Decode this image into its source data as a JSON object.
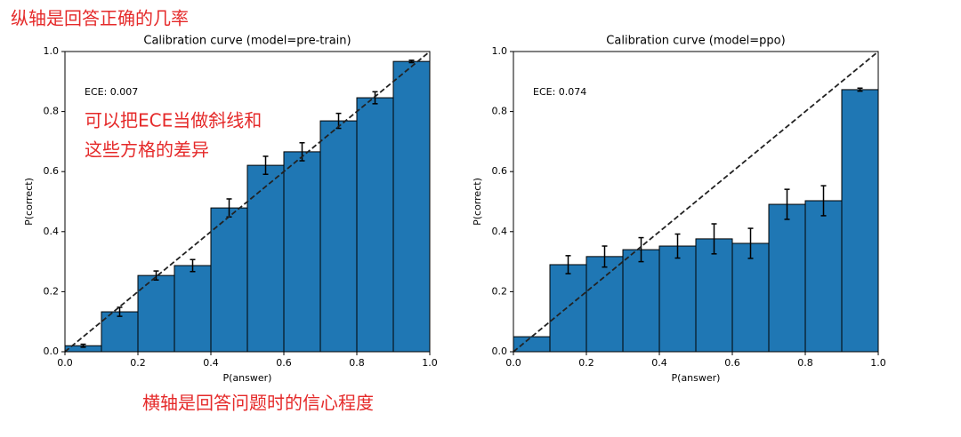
{
  "annotations": [
    "纵轴是回答正确的几率",
    "可以把ECE当做斜线和",
    "这些方格的差异",
    "横轴是回答问题时的信心程度"
  ],
  "chart_data": [
    {
      "type": "histogram",
      "title": "Calibration curve (model=pre-train)",
      "annotation": "ECE: 0.007",
      "x_label": "P(answer)",
      "y_label": "P(correct)",
      "color": "#1f77b4",
      "bins": [
        0,
        0.1,
        0.2,
        0.3,
        0.4,
        0.5,
        0.6,
        0.7,
        0.8,
        0.9,
        1
      ],
      "values": [
        0.02,
        0.133,
        0.254,
        0.287,
        0.479,
        0.621,
        0.666,
        0.769,
        0.846,
        0.967
      ],
      "errors": [
        0.005,
        0.015,
        0.015,
        0.02,
        0.03,
        0.03,
        0.03,
        0.025,
        0.02,
        0.004
      ],
      "xlim": [
        0,
        1
      ],
      "ylim": [
        0,
        1
      ],
      "xticks": [
        {
          "value": 0,
          "label": "0.0"
        },
        0.2,
        0.4,
        0.6,
        0.8,
        {
          "value": 1,
          "label": "1.0"
        }
      ],
      "yticks": [
        {
          "value": 0,
          "label": "0.0"
        },
        0.2,
        0.4,
        0.6,
        0.8,
        {
          "value": 1,
          "label": "1.0"
        }
      ]
    },
    {
      "type": "histogram",
      "title": "Calibration curve (model=ppo)",
      "annotation": "ECE: 0.074",
      "x_label": "P(answer)",
      "y_label": "P(correct)",
      "color": "#1f77b4",
      "bins": [
        0,
        0.1,
        0.2,
        0.3,
        0.4,
        0.5,
        0.6,
        0.7,
        0.8,
        0.9,
        1
      ],
      "values": [
        0.05,
        0.29,
        0.317,
        0.34,
        0.352,
        0.376,
        0.361,
        0.491,
        0.503,
        0.873
      ],
      "errors": [
        0,
        0.03,
        0.035,
        0.04,
        0.04,
        0.05,
        0.05,
        0.05,
        0.05,
        0.005
      ],
      "xlim": [
        0,
        1
      ],
      "ylim": [
        0,
        1
      ],
      "xticks": [
        {
          "value": 0,
          "label": "0.0"
        },
        0.2,
        0.4,
        0.6,
        0.8,
        {
          "value": 1,
          "label": "1.0"
        }
      ],
      "yticks": [
        {
          "value": 0,
          "label": "0.0"
        },
        0.2,
        0.4,
        0.6,
        0.8,
        {
          "value": 1,
          "label": "1.0"
        }
      ]
    }
  ]
}
